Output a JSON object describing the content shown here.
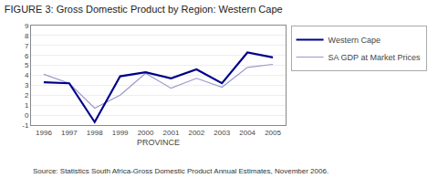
{
  "chart_data": {
    "type": "line",
    "title": "FIGURE 3: Gross Domestic Product by Region: Western Cape",
    "xlabel": "PROVINCE",
    "annotations": [
      "Source: Statistics South Africa-Gross Domestic Product Annual Estimates, November 2006."
    ],
    "x": [
      1996,
      1997,
      1998,
      1999,
      2000,
      2001,
      2002,
      2003,
      2004,
      2005
    ],
    "series": [
      {
        "name": "Western Cape",
        "color": "#00008B",
        "values": [
          3.3,
          3.2,
          -0.7,
          3.9,
          4.3,
          3.7,
          4.6,
          3.2,
          6.3,
          5.8
        ]
      },
      {
        "name": "SA GDP at Market Prices",
        "color": "#9999CC",
        "values": [
          4.1,
          3.2,
          0.7,
          2.0,
          4.2,
          2.7,
          3.7,
          2.8,
          4.8,
          5.1
        ]
      }
    ],
    "xlim": [
      1995.5,
      2005.5
    ],
    "xticks": [
      1996,
      1997,
      1998,
      1999,
      2000,
      2001,
      2002,
      2003,
      2004,
      2005
    ],
    "ylim": [
      -1,
      9
    ],
    "yticks": [
      -1,
      0,
      1,
      2,
      3,
      4,
      5,
      6,
      7,
      8,
      9
    ],
    "grid": true,
    "legend": "right"
  }
}
